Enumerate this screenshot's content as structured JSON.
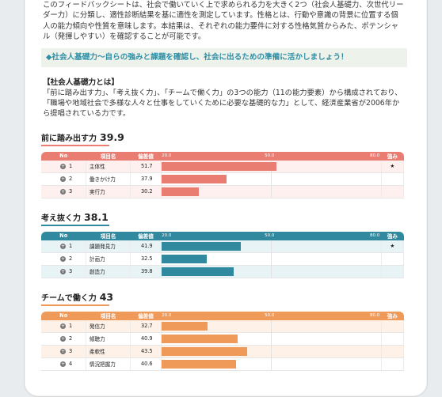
{
  "intro": "このフィードバックシートは、社会で働いていく上で求められる力を大きく2つ（社会人基礎力、次世代リーダー力）に分類し、適性診断結果を基に適性を測定しています。性格とは、行動や意識の背景に位置する個人の能力傾向や性質を意味します。本結果は、それぞれの能力要件に対する性格気質からみた、ポテンシャル（発揮しやすい）を確認することが可能です。",
  "callout": "◆社会人基礎力〜自らの強みと課題を確認し、社会に出るための準備に活かしましょう！",
  "about_title": "【社会人基礎力とは】",
  "about_text": "「前に踏み出す力」、「考え抜く力」、「チームで働く力」の3つの能力（11の能力要素）から構成されており、「職場や地域社会で多様な人々と仕事をしていくために必要な基礎的な力」として、経済産業省が2006年から提唱されている力です。",
  "table_headers": {
    "no": "No",
    "name": "項目名",
    "value": "偏差値",
    "strength": "強み"
  },
  "scale": {
    "min": 20,
    "mid": 50,
    "max": 80,
    "min_label": "20.0",
    "mid_label": "50.0",
    "max_label": "80.0"
  },
  "colors": {
    "section1": "#ea7d72",
    "section2": "#31899f",
    "section3": "#f09a59"
  },
  "sections": [
    {
      "title": "前に踏み出す力",
      "score": "39.9",
      "rows": [
        {
          "no": "1",
          "name": "主体性",
          "value": "51.7",
          "strength": "★"
        },
        {
          "no": "2",
          "name": "働きかけ力",
          "value": "37.9",
          "strength": ""
        },
        {
          "no": "3",
          "name": "実行力",
          "value": "30.2",
          "strength": ""
        }
      ]
    },
    {
      "title": "考え抜く力",
      "score": "38.1",
      "rows": [
        {
          "no": "1",
          "name": "課題発見力",
          "value": "41.9",
          "strength": "★"
        },
        {
          "no": "2",
          "name": "計画力",
          "value": "32.5",
          "strength": ""
        },
        {
          "no": "3",
          "name": "創造力",
          "value": "39.8",
          "strength": ""
        }
      ]
    },
    {
      "title": "チームで働く力",
      "score": "43",
      "rows": [
        {
          "no": "1",
          "name": "発信力",
          "value": "32.7",
          "strength": ""
        },
        {
          "no": "2",
          "name": "傾聴力",
          "value": "40.9",
          "strength": ""
        },
        {
          "no": "3",
          "name": "柔軟性",
          "value": "43.5",
          "strength": ""
        },
        {
          "no": "4",
          "name": "情況把握力",
          "value": "40.6",
          "strength": ""
        }
      ]
    }
  ]
}
